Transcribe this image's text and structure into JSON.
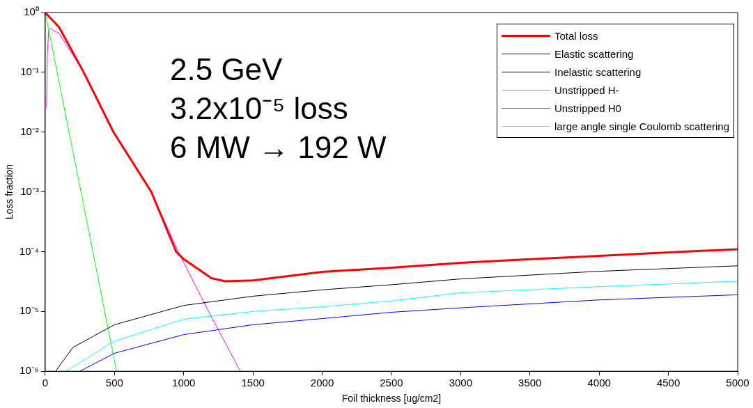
{
  "chart_data": {
    "type": "line",
    "xlabel": "Foil thickness [ug/cm2]",
    "ylabel": "Loss fraction",
    "log": "y",
    "grid": false,
    "legend": "top right",
    "marker": "none",
    "line_style": "solid",
    "xlim": [
      0,
      5000
    ],
    "xticks": [
      0,
      500,
      1000,
      1500,
      2000,
      2500,
      3000,
      3500,
      4000,
      4500,
      5000
    ],
    "ylim": [
      1e-06,
      1
    ],
    "yticks": [
      {
        "value": 1e-06,
        "label": "10⁻⁶"
      },
      {
        "value": 1e-05,
        "label": "10⁻⁵"
      },
      {
        "value": 0.0001,
        "label": "10⁻⁴"
      },
      {
        "value": 0.001,
        "label": "10⁻³"
      },
      {
        "value": 0.01,
        "label": "10⁻²"
      },
      {
        "value": 0.1,
        "label": "10⁻¹"
      },
      {
        "value": 1,
        "label": "10⁰"
      }
    ],
    "annotations": [
      "2.5 GeV",
      "3.2x10⁻⁵ loss",
      "6 MW → 192 W"
    ],
    "series": [
      {
        "name": "Total loss",
        "color": "#ff0000",
        "x": [
          0,
          100,
          278,
          493,
          766,
          945,
          1000,
          1100,
          1200,
          1300,
          1500,
          2000,
          2500,
          3000,
          3500,
          4000,
          4500,
          5000
        ],
        "values": [
          1,
          0.57,
          0.1,
          0.01,
          0.001,
          0.0001,
          7.5e-05,
          5.2e-05,
          3.6e-05,
          3.2e-05,
          3.3e-05,
          4.6e-05,
          5.4e-05,
          6.5e-05,
          7.5e-05,
          8.5e-05,
          9.7e-05,
          0.00011
        ]
      },
      {
        "name": "Elastic scattering",
        "color": "#0000ff",
        "x": [
          250,
          500,
          1000,
          1500,
          2000,
          2500,
          3000,
          4000,
          5000
        ],
        "values": [
          1e-06,
          2e-06,
          4.1e-06,
          6e-06,
          7.6e-06,
          9.7e-06,
          1.15e-05,
          1.56e-05,
          1.9e-05
        ]
      },
      {
        "name": "Inelastic scattering",
        "color": "#000000",
        "x": [
          75,
          200,
          500,
          1000,
          1500,
          2000,
          2500,
          3000,
          4000,
          5000
        ],
        "values": [
          1e-06,
          2.5e-06,
          6e-06,
          1.26e-05,
          1.8e-05,
          2.3e-05,
          2.8e-05,
          3.5e-05,
          4.7e-05,
          5.8e-05
        ]
      },
      {
        "name": "Unstripped H-",
        "color": "#00ff00",
        "x": [
          0,
          100,
          200,
          300,
          400,
          500,
          515
        ],
        "values": [
          1,
          0.069,
          0.0047,
          0.00033,
          2.2e-05,
          1.5e-06,
          1e-06
        ]
      },
      {
        "name": "Unstripped H0",
        "color": "#ff00ff",
        "x": [
          10,
          15,
          25,
          40,
          60,
          100,
          278,
          493,
          766,
          960,
          1180,
          1409
        ],
        "values": [
          0.025,
          0.2,
          0.5,
          0.55,
          0.5,
          0.45,
          0.1,
          0.01,
          0.001,
          0.0001,
          1e-05,
          1e-06
        ]
      },
      {
        "name": "large angle single Coulomb scattering",
        "color": "#00ffff",
        "x": [
          150,
          500,
          1000,
          1500,
          2000,
          2500,
          3000,
          4000,
          5000
        ],
        "values": [
          1e-06,
          3.2e-06,
          7.4e-06,
          1e-05,
          1.2e-05,
          1.5e-05,
          2.05e-05,
          2.6e-05,
          3.2e-05
        ]
      }
    ]
  }
}
